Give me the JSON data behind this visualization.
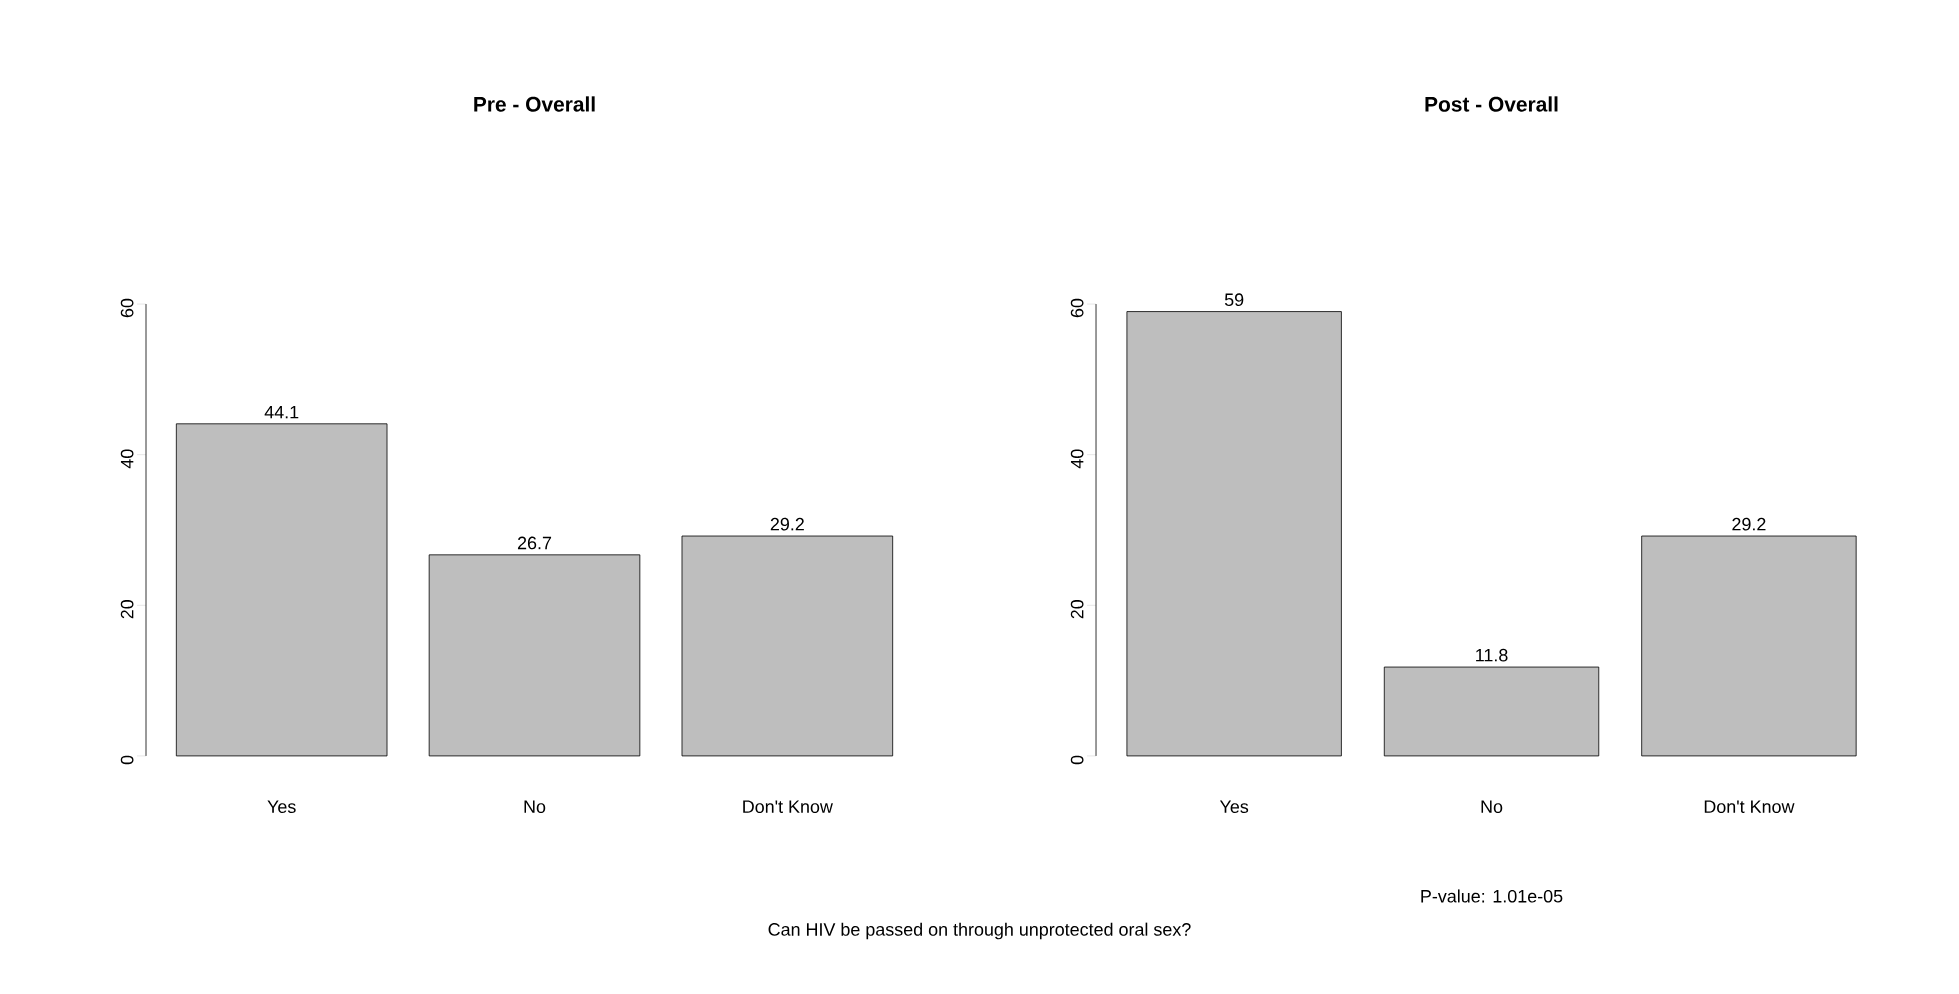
{
  "chart_data": [
    {
      "type": "bar",
      "title": "Pre - Overall",
      "categories": [
        "Yes",
        "No",
        "Don't Know"
      ],
      "values": [
        44.1,
        26.7,
        29.2
      ],
      "value_labels": [
        "44.1",
        "26.7",
        "29.2"
      ],
      "color": "#bebebe",
      "ylim": [
        0,
        60
      ],
      "yticks": [
        0,
        20,
        40,
        60
      ],
      "annotations": [
        "Can HIV be passed on through unprotected oral sex?"
      ]
    },
    {
      "type": "bar",
      "title": "Post - Overall",
      "categories": [
        "Yes",
        "No",
        "Don't Know"
      ],
      "values": [
        59,
        11.8,
        29.2
      ],
      "value_labels": [
        "59",
        "11.8",
        "29.2"
      ],
      "color": "#bebebe",
      "ylim": [
        0,
        60
      ],
      "yticks": [
        0,
        20,
        40,
        60
      ],
      "annotations": [
        "P-value: 1.01e-05"
      ]
    }
  ]
}
